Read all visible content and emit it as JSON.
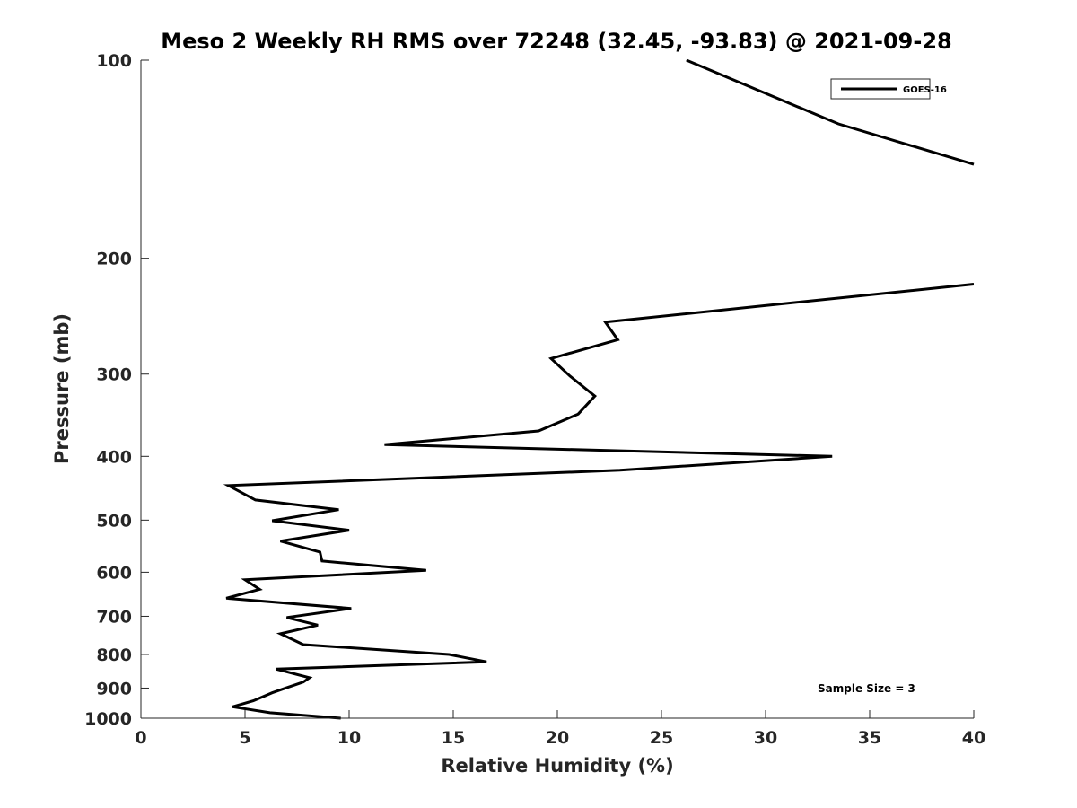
{
  "chart_data": {
    "type": "line",
    "title": "Meso 2 Weekly RH RMS over 72248 (32.45, -93.83) @ 2021-09-28",
    "xlabel": "Relative Humidity (%)",
    "ylabel": "Pressure (mb)",
    "xlim": [
      0,
      40
    ],
    "ylim": [
      1000,
      100
    ],
    "yscale": "log",
    "y_reversed": true,
    "xticks": [
      0,
      5,
      10,
      15,
      20,
      25,
      30,
      35,
      40
    ],
    "xtick_labels": [
      "0",
      "5",
      "10",
      "15",
      "20",
      "25",
      "30",
      "35",
      "40"
    ],
    "yticks": [
      100,
      200,
      300,
      400,
      500,
      600,
      700,
      800,
      900,
      1000
    ],
    "ytick_labels": [
      "100",
      "200",
      "300",
      "400",
      "500",
      "600",
      "700",
      "800",
      "900",
      "1000"
    ],
    "grid": false,
    "legend_position": "top-right",
    "annotation": "Sample Size = 3",
    "series": [
      {
        "name": "GOES-16",
        "color": "#000000",
        "segments": [
          [
            {
              "x": 26.2,
              "y": 100
            },
            {
              "x": 33.5,
              "y": 125
            },
            {
              "x": 40.0,
              "y": 144
            }
          ],
          [
            {
              "x": 40.0,
              "y": 219
            },
            {
              "x": 22.3,
              "y": 250
            },
            {
              "x": 22.9,
              "y": 266
            },
            {
              "x": 19.7,
              "y": 284
            },
            {
              "x": 20.6,
              "y": 302
            },
            {
              "x": 21.8,
              "y": 324
            },
            {
              "x": 21.0,
              "y": 345
            },
            {
              "x": 19.1,
              "y": 366
            },
            {
              "x": 11.7,
              "y": 384
            },
            {
              "x": 33.2,
              "y": 400
            },
            {
              "x": 23.0,
              "y": 420
            },
            {
              "x": 4.2,
              "y": 443
            },
            {
              "x": 5.5,
              "y": 466
            },
            {
              "x": 9.5,
              "y": 482
            },
            {
              "x": 6.3,
              "y": 501
            },
            {
              "x": 10.0,
              "y": 518
            },
            {
              "x": 6.7,
              "y": 538
            },
            {
              "x": 8.6,
              "y": 559
            },
            {
              "x": 8.7,
              "y": 577
            },
            {
              "x": 13.7,
              "y": 596
            },
            {
              "x": 5.0,
              "y": 616
            },
            {
              "x": 5.7,
              "y": 637
            },
            {
              "x": 4.1,
              "y": 657
            },
            {
              "x": 10.1,
              "y": 681
            },
            {
              "x": 7.0,
              "y": 703
            },
            {
              "x": 8.5,
              "y": 722
            },
            {
              "x": 6.7,
              "y": 744
            },
            {
              "x": 7.8,
              "y": 773
            },
            {
              "x": 14.8,
              "y": 800
            },
            {
              "x": 16.6,
              "y": 821
            },
            {
              "x": 6.5,
              "y": 842
            },
            {
              "x": 8.1,
              "y": 868
            },
            {
              "x": 7.8,
              "y": 881
            },
            {
              "x": 6.9,
              "y": 901
            },
            {
              "x": 6.3,
              "y": 915
            },
            {
              "x": 5.4,
              "y": 941
            },
            {
              "x": 4.4,
              "y": 961
            },
            {
              "x": 6.2,
              "y": 981
            },
            {
              "x": 9.6,
              "y": 1000
            }
          ]
        ]
      }
    ]
  }
}
